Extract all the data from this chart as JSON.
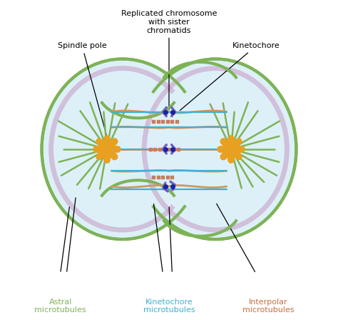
{
  "fig_width": 4.74,
  "fig_height": 4.48,
  "dpi": 100,
  "bg_color": "#ffffff",
  "cell_bg": "#ddf0f8",
  "outer_cell_color": "#7db356",
  "inner_membrane_color": "#c8a0c8",
  "spindle_pole_color": "#e8a020",
  "kinetochore_color": "#7060c0",
  "kinetochore_mt_color": "#40b0d0",
  "interpolar_mt_color": "#d4965a",
  "astral_mt_color": "#7db356",
  "annotation_color": "#000000",
  "astral_label_color": "#7db356",
  "kineto_label_color": "#40b0d0",
  "interpolar_label_color": "#c87040",
  "labels": {
    "spindle_pole": "Spindle pole",
    "replicated_chrom": "Replicated chromosome\nwith sister\nchromatids",
    "kinetochore": "Kinetochore",
    "astral": "Astral\nmicrotubules",
    "kinetochore_mt": "Kinetochore\nmicrotubules",
    "interpolar": "Interpolar\nmicrotubules"
  }
}
